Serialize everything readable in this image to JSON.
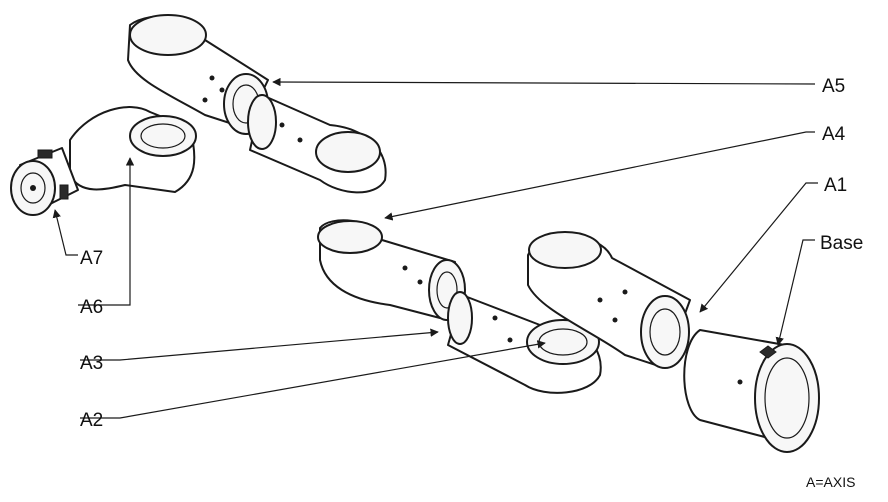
{
  "diagram": {
    "labels": {
      "a1": "A1",
      "a2": "A2",
      "a3": "A3",
      "a4": "A4",
      "a5": "A5",
      "a6": "A6",
      "a7": "A7",
      "base": "Base"
    },
    "legend": "A=AXIS"
  }
}
